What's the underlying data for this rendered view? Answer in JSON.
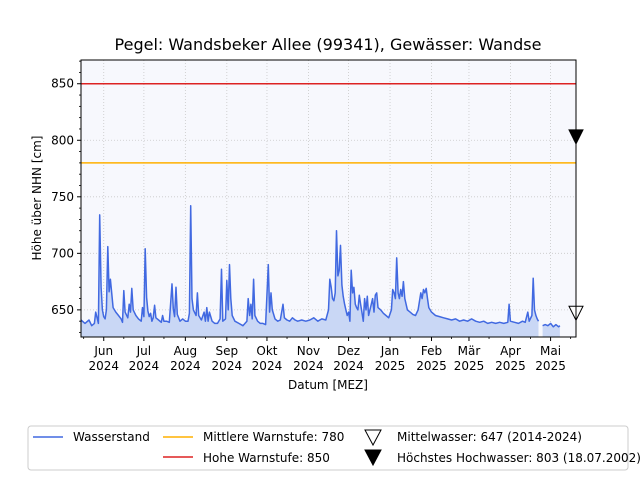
{
  "chart_data": {
    "type": "line",
    "title": "Pegel:  Wandsbeker Allee (99341), Gewässer:  Wandse",
    "xlabel": "Datum [MEZ]",
    "ylabel": "Höhe über NHN [cm]",
    "ylim": [
      626,
      871
    ],
    "y_ticks": [
      650,
      700,
      750,
      800,
      850
    ],
    "xlim": [
      "2024-05-15",
      "2025-05-20"
    ],
    "x_ticks": [
      {
        "date": "2024-06-01",
        "month": "Jun",
        "year": "2024"
      },
      {
        "date": "2024-07-01",
        "month": "Jul",
        "year": "2024"
      },
      {
        "date": "2024-08-01",
        "month": "Aug",
        "year": "2024"
      },
      {
        "date": "2024-09-01",
        "month": "Sep",
        "year": "2024"
      },
      {
        "date": "2024-10-01",
        "month": "Okt",
        "year": "2024"
      },
      {
        "date": "2024-11-01",
        "month": "Nov",
        "year": "2024"
      },
      {
        "date": "2024-12-01",
        "month": "Dez",
        "year": "2024"
      },
      {
        "date": "2025-01-01",
        "month": "Jan",
        "year": "2025"
      },
      {
        "date": "2025-02-01",
        "month": "Feb",
        "year": "2025"
      },
      {
        "date": "2025-03-01",
        "month": "Mär",
        "year": "2025"
      },
      {
        "date": "2025-04-01",
        "month": "Apr",
        "year": "2025"
      },
      {
        "date": "2025-05-01",
        "month": "Mai",
        "year": "2025"
      }
    ],
    "grid": true,
    "legend_position": "bottom",
    "colors": {
      "wasserstand": "#4169e1",
      "fill": "#c9d7f5",
      "plot_bg": "#f7f8fd",
      "mittlere": "#ffb000",
      "hohe": "#dd2222",
      "grid": "#c8c8c8"
    },
    "series": [
      {
        "name": "Wasserstand",
        "points": [
          [
            "2024-05-15",
            641
          ],
          [
            "2024-05-18",
            638
          ],
          [
            "2024-05-21",
            641
          ],
          [
            "2024-05-23",
            636
          ],
          [
            "2024-05-25",
            638
          ],
          [
            "2024-05-26",
            648
          ],
          [
            "2024-05-27",
            643
          ],
          [
            "2024-05-28",
            638
          ],
          [
            "2024-05-29",
            734
          ],
          [
            "2024-05-30",
            670
          ],
          [
            "2024-05-31",
            650
          ],
          [
            "2024-06-01",
            644
          ],
          [
            "2024-06-02",
            642
          ],
          [
            "2024-06-03",
            650
          ],
          [
            "2024-06-04",
            706
          ],
          [
            "2024-06-05",
            666
          ],
          [
            "2024-06-06",
            677
          ],
          [
            "2024-06-07",
            664
          ],
          [
            "2024-06-08",
            652
          ],
          [
            "2024-06-10",
            648
          ],
          [
            "2024-06-12",
            645
          ],
          [
            "2024-06-14",
            642
          ],
          [
            "2024-06-15",
            639
          ],
          [
            "2024-06-16",
            667
          ],
          [
            "2024-06-17",
            648
          ],
          [
            "2024-06-19",
            643
          ],
          [
            "2024-06-20",
            655
          ],
          [
            "2024-06-21",
            648
          ],
          [
            "2024-06-22",
            669
          ],
          [
            "2024-06-23",
            650
          ],
          [
            "2024-06-25",
            645
          ],
          [
            "2024-06-27",
            642
          ],
          [
            "2024-06-29",
            640
          ],
          [
            "2024-06-30",
            652
          ],
          [
            "2024-07-01",
            644
          ],
          [
            "2024-07-02",
            704
          ],
          [
            "2024-07-03",
            661
          ],
          [
            "2024-07-04",
            649
          ],
          [
            "2024-07-05",
            644
          ],
          [
            "2024-07-06",
            647
          ],
          [
            "2024-07-07",
            640
          ],
          [
            "2024-07-08",
            643
          ],
          [
            "2024-07-09",
            654
          ],
          [
            "2024-07-10",
            643
          ],
          [
            "2024-07-12",
            641
          ],
          [
            "2024-07-14",
            639
          ],
          [
            "2024-07-15",
            645
          ],
          [
            "2024-07-16",
            640
          ],
          [
            "2024-07-18",
            640
          ],
          [
            "2024-07-20",
            639
          ],
          [
            "2024-07-22",
            673
          ],
          [
            "2024-07-23",
            651
          ],
          [
            "2024-07-24",
            644
          ],
          [
            "2024-07-25",
            670
          ],
          [
            "2024-07-26",
            646
          ],
          [
            "2024-07-28",
            640
          ],
          [
            "2024-07-30",
            642
          ],
          [
            "2024-08-01",
            640
          ],
          [
            "2024-08-03",
            640
          ],
          [
            "2024-08-04",
            647
          ],
          [
            "2024-08-05",
            742
          ],
          [
            "2024-08-06",
            660
          ],
          [
            "2024-08-07",
            650
          ],
          [
            "2024-08-09",
            645
          ],
          [
            "2024-08-10",
            665
          ],
          [
            "2024-08-11",
            645
          ],
          [
            "2024-08-13",
            641
          ],
          [
            "2024-08-15",
            648
          ],
          [
            "2024-08-16",
            640
          ],
          [
            "2024-08-17",
            652
          ],
          [
            "2024-08-18",
            640
          ],
          [
            "2024-08-19",
            648
          ],
          [
            "2024-08-21",
            640
          ],
          [
            "2024-08-23",
            638
          ],
          [
            "2024-08-25",
            638
          ],
          [
            "2024-08-27",
            642
          ],
          [
            "2024-08-28",
            686
          ],
          [
            "2024-08-29",
            640
          ],
          [
            "2024-08-31",
            642
          ],
          [
            "2024-09-01",
            676
          ],
          [
            "2024-09-02",
            650
          ],
          [
            "2024-09-03",
            690
          ],
          [
            "2024-09-04",
            660
          ],
          [
            "2024-09-05",
            645
          ],
          [
            "2024-09-07",
            640
          ],
          [
            "2024-09-10",
            638
          ],
          [
            "2024-09-13",
            636
          ],
          [
            "2024-09-16",
            640
          ],
          [
            "2024-09-17",
            660
          ],
          [
            "2024-09-18",
            645
          ],
          [
            "2024-09-19",
            655
          ],
          [
            "2024-09-20",
            642
          ],
          [
            "2024-09-21",
            677
          ],
          [
            "2024-09-22",
            645
          ],
          [
            "2024-09-24",
            640
          ],
          [
            "2024-09-26",
            638
          ],
          [
            "2024-09-28",
            638
          ],
          [
            "2024-09-30",
            637
          ],
          [
            "2024-10-02",
            690
          ],
          [
            "2024-10-03",
            648
          ],
          [
            "2024-10-04",
            665
          ],
          [
            "2024-10-05",
            650
          ],
          [
            "2024-10-07",
            642
          ],
          [
            "2024-10-09",
            640
          ],
          [
            "2024-10-11",
            641
          ],
          [
            "2024-10-13",
            655
          ],
          [
            "2024-10-14",
            643
          ],
          [
            "2024-10-16",
            641
          ],
          [
            "2024-10-18",
            640
          ],
          [
            "2024-10-20",
            643
          ],
          [
            "2024-10-22",
            641
          ],
          [
            "2024-10-24",
            640
          ],
          [
            "2024-10-27",
            641
          ],
          [
            "2024-10-30",
            640
          ],
          [
            "2024-11-02",
            641
          ],
          [
            "2024-11-05",
            643
          ],
          [
            "2024-11-08",
            640
          ],
          [
            "2024-11-11",
            642
          ],
          [
            "2024-11-14",
            641
          ],
          [
            "2024-11-16",
            650
          ],
          [
            "2024-11-17",
            677
          ],
          [
            "2024-11-18",
            670
          ],
          [
            "2024-11-19",
            660
          ],
          [
            "2024-11-20",
            658
          ],
          [
            "2024-11-21",
            665
          ],
          [
            "2024-11-22",
            720
          ],
          [
            "2024-11-23",
            680
          ],
          [
            "2024-11-24",
            685
          ],
          [
            "2024-11-25",
            707
          ],
          [
            "2024-11-26",
            672
          ],
          [
            "2024-11-27",
            662
          ],
          [
            "2024-11-28",
            655
          ],
          [
            "2024-11-29",
            650
          ],
          [
            "2024-11-30",
            645
          ],
          [
            "2024-12-01",
            648
          ],
          [
            "2024-12-02",
            640
          ],
          [
            "2024-12-03",
            685
          ],
          [
            "2024-12-04",
            665
          ],
          [
            "2024-12-05",
            670
          ],
          [
            "2024-12-06",
            655
          ],
          [
            "2024-12-07",
            652
          ],
          [
            "2024-12-08",
            650
          ],
          [
            "2024-12-09",
            663
          ],
          [
            "2024-12-10",
            655
          ],
          [
            "2024-12-11",
            648
          ],
          [
            "2024-12-12",
            640
          ],
          [
            "2024-12-13",
            660
          ],
          [
            "2024-12-14",
            650
          ],
          [
            "2024-12-15",
            662
          ],
          [
            "2024-12-16",
            645
          ],
          [
            "2024-12-18",
            655
          ],
          [
            "2024-12-19",
            660
          ],
          [
            "2024-12-20",
            648
          ],
          [
            "2024-12-21",
            663
          ],
          [
            "2024-12-22",
            665
          ],
          [
            "2024-12-23",
            652
          ],
          [
            "2024-12-25",
            650
          ],
          [
            "2024-12-27",
            647
          ],
          [
            "2024-12-29",
            645
          ],
          [
            "2024-12-31",
            643
          ],
          [
            "2025-01-02",
            650
          ],
          [
            "2025-01-03",
            668
          ],
          [
            "2025-01-04",
            665
          ],
          [
            "2025-01-05",
            660
          ],
          [
            "2025-01-06",
            696
          ],
          [
            "2025-01-07",
            665
          ],
          [
            "2025-01-08",
            660
          ],
          [
            "2025-01-09",
            668
          ],
          [
            "2025-01-10",
            662
          ],
          [
            "2025-01-11",
            675
          ],
          [
            "2025-01-12",
            660
          ],
          [
            "2025-01-14",
            650
          ],
          [
            "2025-01-16",
            648
          ],
          [
            "2025-01-18",
            646
          ],
          [
            "2025-01-20",
            645
          ],
          [
            "2025-01-22",
            650
          ],
          [
            "2025-01-24",
            665
          ],
          [
            "2025-01-25",
            660
          ],
          [
            "2025-01-26",
            668
          ],
          [
            "2025-01-27",
            665
          ],
          [
            "2025-01-28",
            669
          ],
          [
            "2025-01-29",
            660
          ],
          [
            "2025-01-30",
            652
          ],
          [
            "2025-02-01",
            648
          ],
          [
            "2025-02-04",
            645
          ],
          [
            "2025-02-07",
            644
          ],
          [
            "2025-02-10",
            643
          ],
          [
            "2025-02-13",
            642
          ],
          [
            "2025-02-16",
            641
          ],
          [
            "2025-02-19",
            642
          ],
          [
            "2025-02-22",
            640
          ],
          [
            "2025-02-25",
            641
          ],
          [
            "2025-02-28",
            640
          ],
          [
            "2025-03-03",
            642
          ],
          [
            "2025-03-06",
            640
          ],
          [
            "2025-03-09",
            639
          ],
          [
            "2025-03-12",
            640
          ],
          [
            "2025-03-15",
            638
          ],
          [
            "2025-03-18",
            639
          ],
          [
            "2025-03-21",
            638
          ],
          [
            "2025-03-24",
            639
          ],
          [
            "2025-03-27",
            638
          ],
          [
            "2025-03-30",
            639
          ],
          [
            "2025-03-31",
            655
          ],
          [
            "2025-04-01",
            640
          ],
          [
            "2025-04-04",
            639
          ],
          [
            "2025-04-07",
            638
          ],
          [
            "2025-04-10",
            640
          ],
          [
            "2025-04-12",
            639
          ],
          [
            "2025-04-14",
            648
          ],
          [
            "2025-04-15",
            640
          ],
          [
            "2025-04-17",
            645
          ],
          [
            "2025-04-18",
            678
          ],
          [
            "2025-04-19",
            650
          ],
          [
            "2025-04-20",
            645
          ],
          [
            "2025-04-21",
            642
          ],
          [
            "2025-04-22",
            640
          ],
          null,
          [
            "2025-04-25",
            636
          ],
          [
            "2025-04-27",
            637
          ],
          [
            "2025-04-29",
            636
          ],
          [
            "2025-05-01",
            638
          ],
          [
            "2025-05-03",
            635
          ],
          [
            "2025-05-05",
            637
          ],
          [
            "2025-05-07",
            635
          ],
          [
            "2025-05-08",
            636
          ]
        ]
      },
      {
        "name": "Mittlere Warnstufe: 780",
        "value": 780
      },
      {
        "name": "Hohe Warnstufe: 850",
        "value": 850
      },
      {
        "name": "Mittelwasser: 647 (2014-2024)",
        "value": 647,
        "marker": "open-triangle-down"
      },
      {
        "name": "Höchstes Hochwasser: 803 (18.07.2002)",
        "value": 803,
        "marker": "filled-triangle-down"
      }
    ]
  }
}
